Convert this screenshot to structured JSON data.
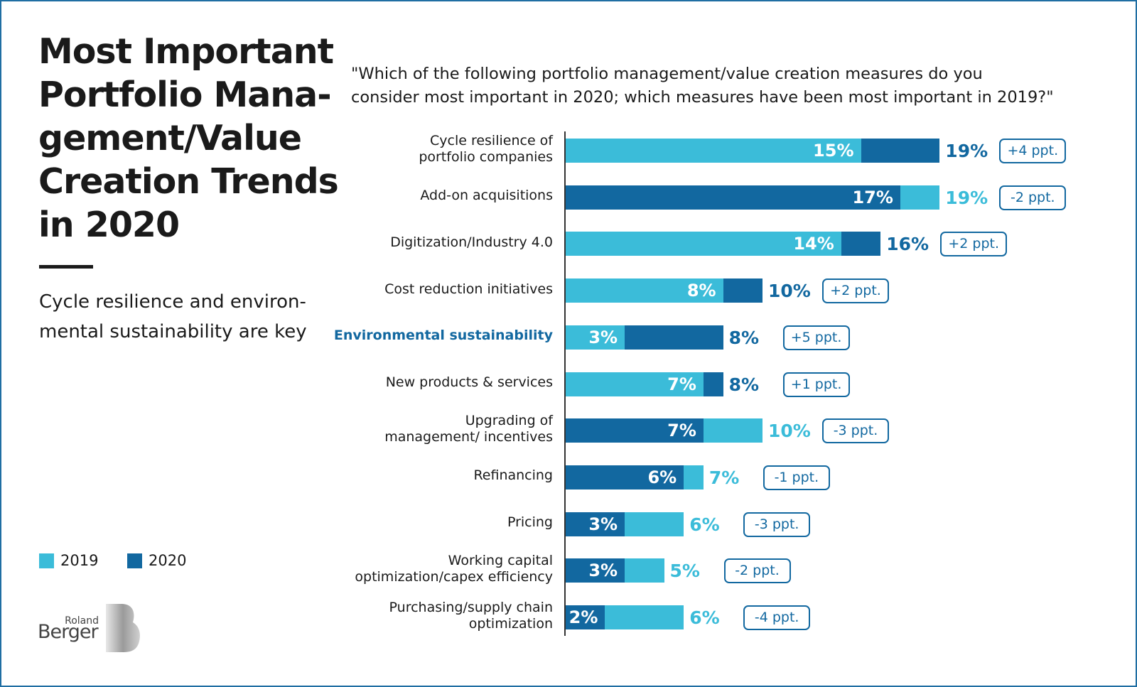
{
  "chart_data": {
    "type": "bar",
    "title": "Most Important\nPortfolio Mana-\ngement/Value\nCreation Trends\nin 2020",
    "subtitle": "Cycle resilience and environ-\nmental sustainability are key",
    "question": "\"Which of the following portfolio management/value creation measures do you\nconsider most important in 2020; which measures have been most important in 2019?\"",
    "categories": [
      "Cycle resilience of\nportfolio companies",
      "Add-on acquisitions",
      "Digitization/Industry 4.0",
      "Cost reduction initiatives",
      "Environmental sustainability",
      "New products & services",
      "Upgrading of\nmanagement/ incentives",
      "Refinancing",
      "Pricing",
      "Working capital\noptimization/capex efficiency",
      "Purchasing/supply chain\noptimization"
    ],
    "highlight_index": 4,
    "series": [
      {
        "name": "2019",
        "color": "#3bbcd9",
        "values": [
          15,
          19,
          14,
          8,
          3,
          7,
          10,
          7,
          6,
          5,
          6
        ],
        "value_labels": [
          "15%",
          "19%",
          "14%",
          "8%",
          "3%",
          "7%",
          "10%",
          "7%",
          "6%",
          "5%",
          "6%"
        ]
      },
      {
        "name": "2020",
        "color": "#1268a0",
        "values": [
          19,
          17,
          16,
          10,
          8,
          8,
          7,
          6,
          3,
          3,
          2
        ],
        "value_labels": [
          "19%",
          "17%",
          "16%",
          "10%",
          "8%",
          "8%",
          "7%",
          "6%",
          "3%",
          "3%",
          "2%"
        ]
      }
    ],
    "changes": [
      4,
      -2,
      2,
      2,
      5,
      1,
      -3,
      -1,
      -3,
      -2,
      -4
    ],
    "change_labels": [
      "+4 ppt.",
      "-2 ppt.",
      "+2 ppt.",
      "+2 ppt.",
      "+5 ppt.",
      "+1 ppt.",
      "-3 ppt.",
      "-1 ppt.",
      "-3 ppt.",
      "-2 ppt.",
      "-4 ppt."
    ],
    "logo": [
      "Roland",
      "Berger"
    ]
  }
}
